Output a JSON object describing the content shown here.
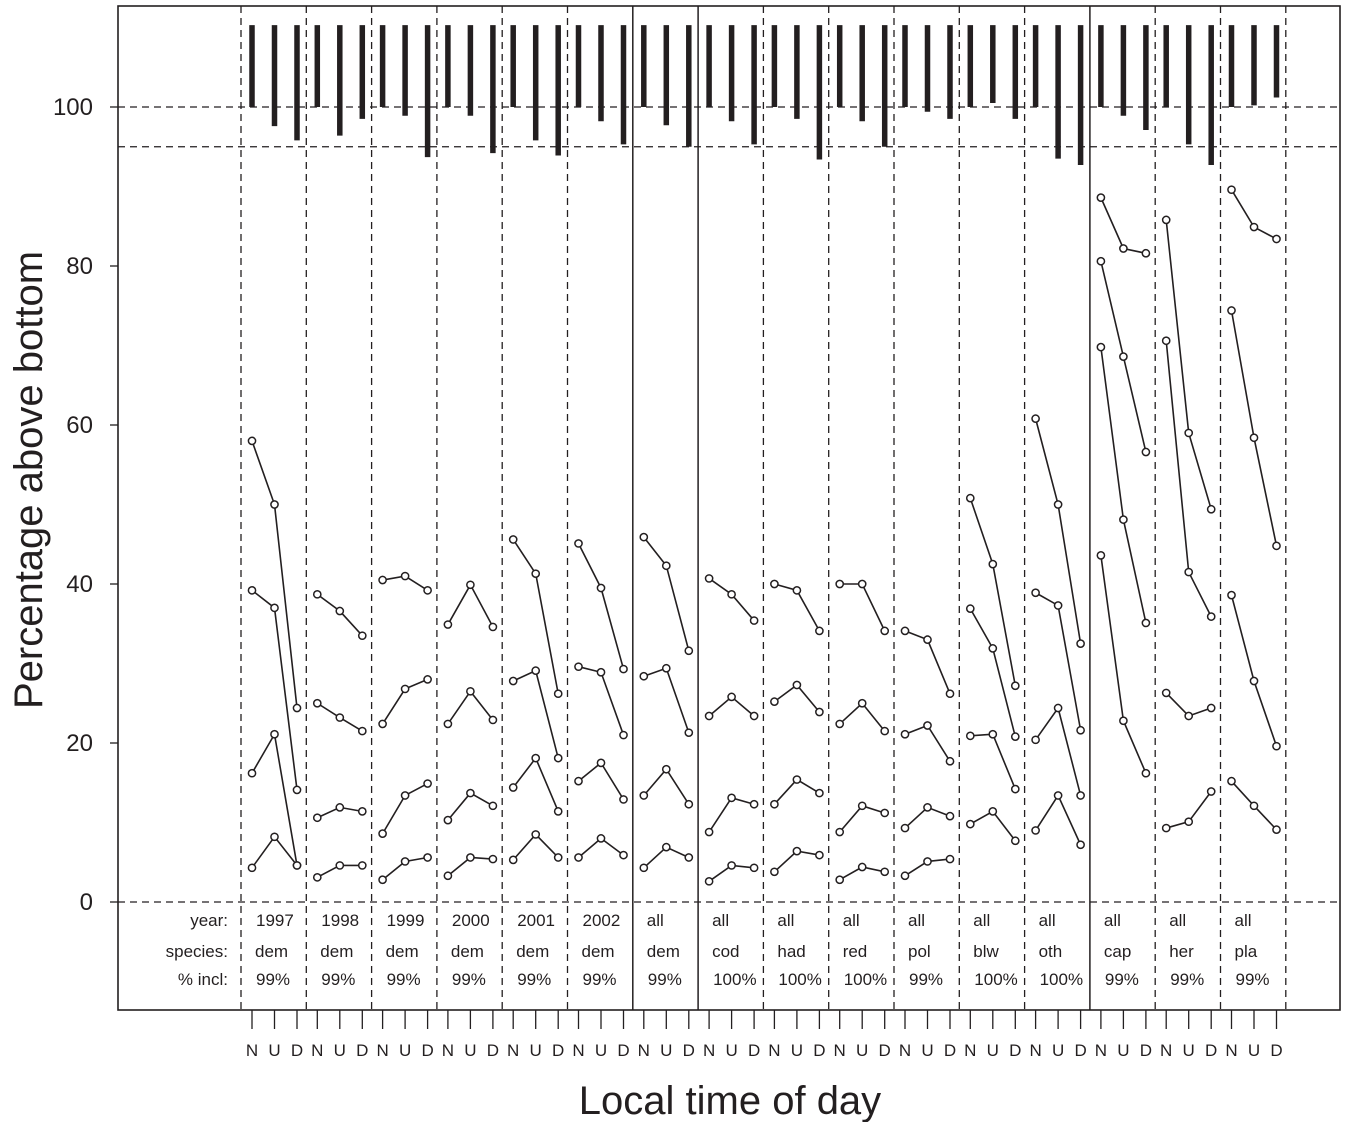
{
  "chart_data": {
    "type": "line",
    "xlabel": "Local time of day",
    "ylabel": "Percentage above bottom",
    "ylim": [
      -13.5,
      113
    ],
    "yticks": [
      0,
      20,
      40,
      60,
      80,
      100
    ],
    "reference_lines": [
      0,
      95,
      100
    ],
    "row_labels": [
      "year:",
      "species:",
      "% incl:"
    ],
    "time_labels": [
      "N",
      "U",
      "D"
    ],
    "panels": [
      {
        "year": "1997",
        "species": "dem",
        "incl": "99%",
        "bars": [
          100,
          97.6,
          95.8
        ],
        "series": [
          [
            58,
            50,
            24.4
          ],
          [
            39.2,
            37,
            14.1
          ],
          [
            16.2,
            21.1,
            4.6
          ],
          [
            4.3,
            8.2,
            4.6
          ]
        ]
      },
      {
        "year": "1998",
        "species": "dem",
        "incl": "99%",
        "bars": [
          100,
          96.4,
          98.5
        ],
        "series": [
          [
            38.7,
            36.6,
            33.5
          ],
          [
            25,
            23.2,
            21.5
          ],
          [
            10.6,
            11.9,
            11.4
          ],
          [
            3.1,
            4.6,
            4.6
          ]
        ]
      },
      {
        "year": "1999",
        "species": "dem",
        "incl": "99%",
        "bars": [
          100,
          98.9,
          93.7
        ],
        "series": [
          [
            40.5,
            41,
            39.2
          ],
          [
            22.4,
            26.8,
            28
          ],
          [
            8.6,
            13.4,
            14.9
          ],
          [
            2.8,
            5.1,
            5.6
          ]
        ]
      },
      {
        "year": "2000",
        "species": "dem",
        "incl": "99%",
        "bars": [
          100,
          98.9,
          94.2
        ],
        "series": [
          [
            34.9,
            39.9,
            34.6
          ],
          [
            22.4,
            26.5,
            22.9
          ],
          [
            10.3,
            13.7,
            12.1
          ],
          [
            3.3,
            5.6,
            5.4
          ]
        ]
      },
      {
        "year": "2001",
        "species": "dem",
        "incl": "99%",
        "bars": [
          100,
          95.8,
          93.9
        ],
        "series": [
          [
            45.6,
            41.3,
            26.2
          ],
          [
            27.8,
            29.1,
            18.1
          ],
          [
            14.4,
            18.1,
            11.4
          ],
          [
            5.3,
            8.5,
            5.6
          ]
        ]
      },
      {
        "year": "2002",
        "species": "dem",
        "incl": "99%",
        "bars": [
          100,
          98.2,
          95.3
        ],
        "series": [
          [
            45.1,
            39.5,
            29.3
          ],
          [
            29.6,
            28.9,
            21
          ],
          [
            15.2,
            17.5,
            12.9
          ],
          [
            5.6,
            8,
            5.9
          ]
        ]
      },
      {
        "year": "all",
        "species": "dem",
        "incl": "99%",
        "bars": [
          100,
          97.7,
          95
        ],
        "series": [
          [
            45.9,
            42.3,
            31.6
          ],
          [
            28.4,
            29.4,
            21.3
          ],
          [
            13.4,
            16.7,
            12.3
          ],
          [
            4.3,
            6.9,
            5.6
          ]
        ]
      },
      {
        "year": "all",
        "species": "cod",
        "incl": "100%",
        "bars": [
          100,
          98.2,
          95.3
        ],
        "series": [
          [
            40.7,
            38.7,
            35.4
          ],
          [
            23.4,
            25.8,
            23.4
          ],
          [
            8.8,
            13.1,
            12.3
          ],
          [
            2.6,
            4.6,
            4.3
          ]
        ]
      },
      {
        "year": "all",
        "species": "had",
        "incl": "100%",
        "bars": [
          100,
          98.5,
          93.4
        ],
        "series": [
          [
            40,
            39.2,
            34.1
          ],
          [
            25.2,
            27.3,
            23.9
          ],
          [
            12.3,
            15.4,
            13.7
          ],
          [
            3.8,
            6.4,
            5.9
          ]
        ]
      },
      {
        "year": "all",
        "species": "red",
        "incl": "100%",
        "bars": [
          100,
          98.2,
          95
        ],
        "series": [
          [
            40,
            40,
            34.1
          ],
          [
            22.4,
            25,
            21.5
          ],
          [
            8.8,
            12.1,
            11.2
          ],
          [
            2.8,
            4.4,
            3.8
          ]
        ]
      },
      {
        "year": "all",
        "species": "pol",
        "incl": "99%",
        "bars": [
          100,
          99.4,
          98.5
        ],
        "series": [
          [
            34.1,
            33,
            26.2
          ],
          [
            21.1,
            22.2,
            17.7
          ],
          [
            9.3,
            11.9,
            10.8
          ],
          [
            3.3,
            5.1,
            5.4
          ]
        ]
      },
      {
        "year": "all",
        "species": "blw",
        "incl": "100%",
        "bars": [
          100,
          100.5,
          98.5
        ],
        "series": [
          [
            50.8,
            42.5,
            27.2
          ],
          [
            36.9,
            31.9,
            20.8
          ],
          [
            20.9,
            21.1,
            14.2
          ],
          [
            9.8,
            11.4,
            7.7
          ]
        ]
      },
      {
        "year": "all",
        "species": "oth",
        "incl": "100%",
        "bars": [
          100,
          93.5,
          92.7
        ],
        "series": [
          [
            60.8,
            50,
            32.5
          ],
          [
            38.9,
            37.3,
            21.6
          ],
          [
            20.4,
            24.4,
            13.4
          ],
          [
            9,
            13.4,
            7.2
          ]
        ]
      },
      {
        "year": "all",
        "species": "cap",
        "incl": "99%",
        "bars": [
          100,
          98.9,
          97.1
        ],
        "series": [
          [
            88.6,
            82.2,
            81.6
          ],
          [
            80.6,
            68.6,
            56.6
          ],
          [
            69.8,
            48.1,
            35.1
          ],
          [
            43.6,
            22.8,
            16.2
          ]
        ]
      },
      {
        "year": "all",
        "species": "her",
        "incl": "99%",
        "bars": [
          100,
          95.3,
          92.7
        ],
        "series": [
          [
            85.8,
            59,
            49.4
          ],
          [
            70.6,
            41.5,
            35.9
          ],
          [
            26.3,
            23.4,
            24.4
          ],
          [
            9.3,
            10.1,
            13.9
          ]
        ]
      },
      {
        "year": "all",
        "species": "pla",
        "incl": "99%",
        "bars": [
          100,
          100.2,
          101.2
        ],
        "series": [
          [
            89.6,
            84.9,
            83.4
          ],
          [
            74.4,
            58.4,
            44.8
          ],
          [
            38.6,
            27.8,
            19.6
          ],
          [
            15.2,
            12.1,
            9.1
          ]
        ]
      }
    ]
  }
}
